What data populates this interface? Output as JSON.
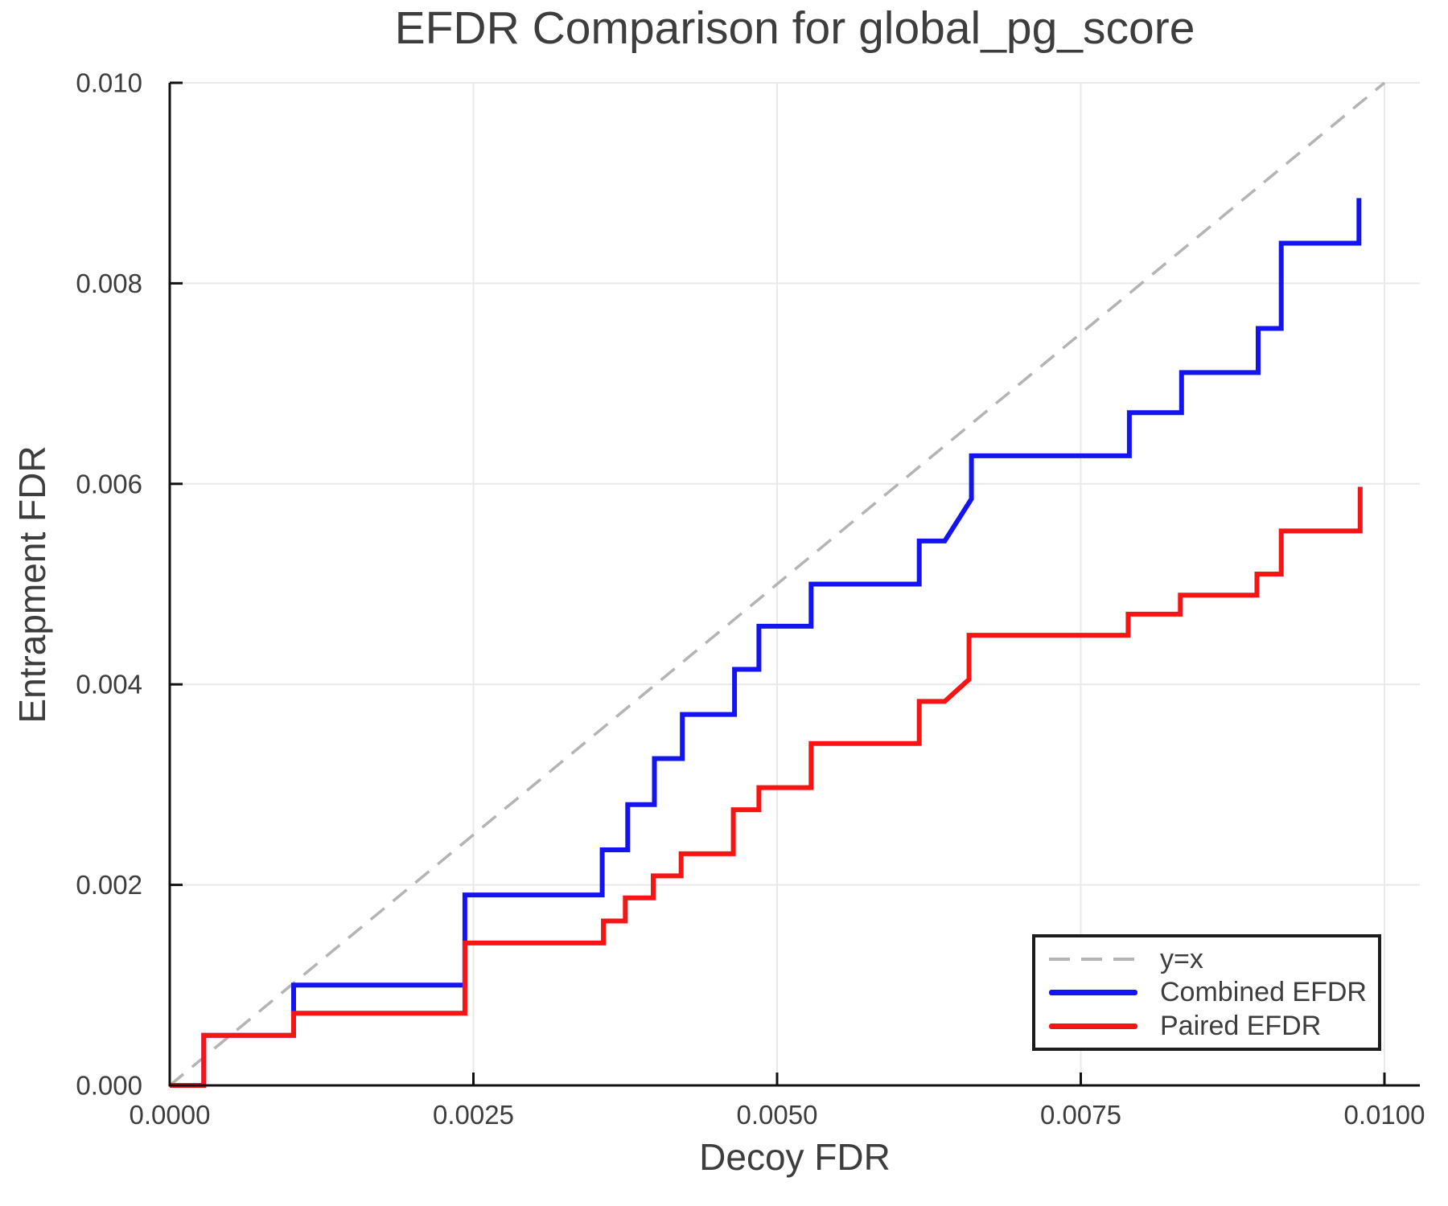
{
  "title": "EFDR Comparison for global_pg_score",
  "axes": {
    "xlabel": "Decoy FDR",
    "ylabel": "Entrapment FDR",
    "x_tick_values": [
      0,
      0.0025,
      0.005,
      0.0075,
      0.01
    ],
    "x_tick_labels": [
      "0.0000",
      "0.0025",
      "0.0050",
      "0.0075",
      "0.0100"
    ],
    "y_tick_values": [
      0,
      0.002,
      0.004,
      0.006,
      0.008,
      0.01
    ],
    "y_tick_labels": [
      "0.000",
      "0.002",
      "0.004",
      "0.006",
      "0.008",
      "0.010"
    ]
  },
  "legend": {
    "entries": [
      {
        "label": "y=x",
        "style": "dashed",
        "color": "#b4b4b4"
      },
      {
        "label": "Combined EFDR",
        "style": "solid",
        "color": "#1414f0"
      },
      {
        "label": "Paired EFDR",
        "style": "solid",
        "color": "#f71414"
      }
    ]
  },
  "colors": {
    "grid": "#e9e9e9",
    "spine": "#111111",
    "tick_text": "#3d3d3d",
    "identity_line": "#b4b4b4",
    "combined": "#1414f0",
    "paired": "#f71414"
  },
  "chart_data": {
    "type": "line",
    "title": "EFDR Comparison for global_pg_score",
    "xlabel": "Decoy FDR",
    "ylabel": "Entrapment FDR",
    "xlim": [
      0,
      0.0103
    ],
    "ylim": [
      0,
      0.01
    ],
    "grid": true,
    "legend_position": "lower right",
    "series": [
      {
        "name": "y=x",
        "slug": "identity-line",
        "style": "dashed",
        "color": "#b4b4b4",
        "width": 3.5,
        "points": [
          [
            0,
            0
          ],
          [
            0.01,
            0.01
          ]
        ]
      },
      {
        "name": "Combined EFDR",
        "slug": "combined-efdr-line",
        "style": "solid",
        "color": "#1414f0",
        "width": 6,
        "points": [
          [
            0,
            0
          ],
          [
            0.00028,
            0
          ],
          [
            0.00028,
            0.0005
          ],
          [
            0.00102,
            0.0005
          ],
          [
            0.00102,
            0.001
          ],
          [
            0.00243,
            0.001
          ],
          [
            0.00243,
            0.0019
          ],
          [
            0.00356,
            0.0019
          ],
          [
            0.00356,
            0.00235
          ],
          [
            0.00377,
            0.00235
          ],
          [
            0.00377,
            0.0028
          ],
          [
            0.00399,
            0.0028
          ],
          [
            0.00399,
            0.00326
          ],
          [
            0.00422,
            0.00326
          ],
          [
            0.00422,
            0.0037
          ],
          [
            0.00465,
            0.0037
          ],
          [
            0.00465,
            0.00415
          ],
          [
            0.00485,
            0.00415
          ],
          [
            0.00485,
            0.00458
          ],
          [
            0.00528,
            0.00458
          ],
          [
            0.00528,
            0.005
          ],
          [
            0.00617,
            0.005
          ],
          [
            0.00617,
            0.00543
          ],
          [
            0.00638,
            0.00543
          ],
          [
            0.0066,
            0.00585
          ],
          [
            0.0066,
            0.00628
          ],
          [
            0.0079,
            0.00628
          ],
          [
            0.0079,
            0.00671
          ],
          [
            0.00833,
            0.00671
          ],
          [
            0.00833,
            0.00711
          ],
          [
            0.00896,
            0.00711
          ],
          [
            0.00896,
            0.00755
          ],
          [
            0.00915,
            0.00755
          ],
          [
            0.00915,
            0.0084
          ],
          [
            0.00979,
            0.0084
          ],
          [
            0.00979,
            0.00885
          ]
        ]
      },
      {
        "name": "Paired EFDR",
        "slug": "paired-efdr-line",
        "style": "solid",
        "color": "#f71414",
        "width": 6,
        "points": [
          [
            0,
            0
          ],
          [
            0.00028,
            0
          ],
          [
            0.00028,
            0.0005
          ],
          [
            0.00102,
            0.0005
          ],
          [
            0.00102,
            0.00072
          ],
          [
            0.00243,
            0.00072
          ],
          [
            0.00243,
            0.00142
          ],
          [
            0.00357,
            0.00142
          ],
          [
            0.00357,
            0.00164
          ],
          [
            0.00375,
            0.00164
          ],
          [
            0.00375,
            0.00187
          ],
          [
            0.00398,
            0.00187
          ],
          [
            0.00398,
            0.00209
          ],
          [
            0.00421,
            0.00209
          ],
          [
            0.00421,
            0.00231
          ],
          [
            0.00464,
            0.00231
          ],
          [
            0.00464,
            0.00275
          ],
          [
            0.00485,
            0.00275
          ],
          [
            0.00485,
            0.00297
          ],
          [
            0.00528,
            0.00297
          ],
          [
            0.00528,
            0.00341
          ],
          [
            0.00617,
            0.00341
          ],
          [
            0.00617,
            0.00383
          ],
          [
            0.00638,
            0.00383
          ],
          [
            0.00658,
            0.00405
          ],
          [
            0.00658,
            0.00449
          ],
          [
            0.00789,
            0.00449
          ],
          [
            0.00789,
            0.0047
          ],
          [
            0.00832,
            0.0047
          ],
          [
            0.00832,
            0.00489
          ],
          [
            0.00895,
            0.00489
          ],
          [
            0.00895,
            0.0051
          ],
          [
            0.00915,
            0.0051
          ],
          [
            0.00915,
            0.00553
          ],
          [
            0.0098,
            0.00553
          ],
          [
            0.0098,
            0.00597
          ]
        ]
      }
    ]
  }
}
